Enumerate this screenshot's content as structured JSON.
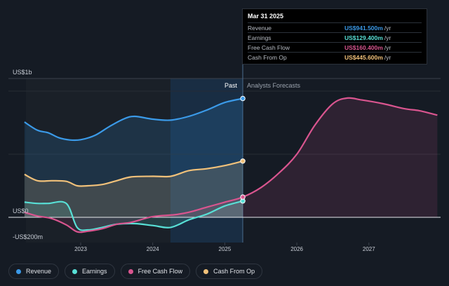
{
  "chart_data": {
    "type": "area",
    "y_unit_labels": {
      "top": "US$1b",
      "zero": "US$0",
      "bottom": "-US$200m"
    },
    "ylim": [
      -200,
      1000
    ],
    "xlim": [
      2022.2,
      2027.98
    ],
    "x_ticks": [
      {
        "value": 2023,
        "label": "2023"
      },
      {
        "value": 2024,
        "label": "2024"
      },
      {
        "value": 2025,
        "label": "2025"
      },
      {
        "value": 2026,
        "label": "2026"
      },
      {
        "value": 2027,
        "label": "2027"
      }
    ],
    "regions": {
      "past_label": "Past",
      "forecast_label": "Analysts Forecasts",
      "divider_x": 2025.25
    },
    "series": [
      {
        "key": "revenue",
        "name": "Revenue",
        "color": "#3b9ae8",
        "points": [
          [
            2022.22,
            755
          ],
          [
            2022.4,
            690
          ],
          [
            2022.55,
            670
          ],
          [
            2022.7,
            630
          ],
          [
            2022.85,
            613
          ],
          [
            2023.0,
            615
          ],
          [
            2023.2,
            650
          ],
          [
            2023.4,
            720
          ],
          [
            2023.6,
            780
          ],
          [
            2023.75,
            800
          ],
          [
            2024.0,
            778
          ],
          [
            2024.25,
            770
          ],
          [
            2024.5,
            800
          ],
          [
            2024.75,
            850
          ],
          [
            2025.0,
            910
          ],
          [
            2025.25,
            941.5
          ]
        ]
      },
      {
        "key": "earnings",
        "name": "Earnings",
        "color": "#58e0d6",
        "points": [
          [
            2022.22,
            120
          ],
          [
            2022.4,
            110
          ],
          [
            2022.55,
            110
          ],
          [
            2022.8,
            110
          ],
          [
            2022.95,
            -80
          ],
          [
            2023.1,
            -100
          ],
          [
            2023.3,
            -80
          ],
          [
            2023.5,
            -55
          ],
          [
            2023.75,
            -50
          ],
          [
            2024.0,
            -65
          ],
          [
            2024.25,
            -80
          ],
          [
            2024.5,
            -20
          ],
          [
            2024.75,
            25
          ],
          [
            2025.0,
            90
          ],
          [
            2025.25,
            129.4
          ]
        ]
      },
      {
        "key": "fcf",
        "name": "Free Cash Flow",
        "color": "#d9558f",
        "points": [
          [
            2022.22,
            40
          ],
          [
            2022.4,
            10
          ],
          [
            2022.6,
            -10
          ],
          [
            2022.8,
            -60
          ],
          [
            2022.95,
            -115
          ],
          [
            2023.1,
            -110
          ],
          [
            2023.3,
            -90
          ],
          [
            2023.5,
            -55
          ],
          [
            2023.7,
            -40
          ],
          [
            2024.0,
            5
          ],
          [
            2024.3,
            20
          ],
          [
            2024.5,
            40
          ],
          [
            2024.75,
            80
          ],
          [
            2025.0,
            120
          ],
          [
            2025.25,
            160.4
          ],
          [
            2025.5,
            235
          ],
          [
            2025.75,
            350
          ],
          [
            2026.0,
            500
          ],
          [
            2026.25,
            730
          ],
          [
            2026.5,
            900
          ],
          [
            2026.7,
            945
          ],
          [
            2026.9,
            930
          ],
          [
            2027.2,
            900
          ],
          [
            2027.5,
            860
          ],
          [
            2027.7,
            845
          ],
          [
            2027.95,
            810
          ]
        ]
      },
      {
        "key": "cfo",
        "name": "Cash From Op",
        "color": "#f1c17a",
        "points": [
          [
            2022.22,
            340
          ],
          [
            2022.4,
            290
          ],
          [
            2022.6,
            290
          ],
          [
            2022.8,
            285
          ],
          [
            2022.95,
            250
          ],
          [
            2023.1,
            250
          ],
          [
            2023.3,
            260
          ],
          [
            2023.5,
            290
          ],
          [
            2023.7,
            320
          ],
          [
            2024.0,
            325
          ],
          [
            2024.25,
            325
          ],
          [
            2024.5,
            370
          ],
          [
            2024.75,
            385
          ],
          [
            2025.0,
            410
          ],
          [
            2025.25,
            445.6
          ]
        ]
      }
    ]
  },
  "tooltip": {
    "date": "Mar 31 2025",
    "rows": [
      {
        "label": "Revenue",
        "value": "US$941.500m",
        "unit": "/yr",
        "color": "#3b9ae8"
      },
      {
        "label": "Earnings",
        "value": "US$129.400m",
        "unit": "/yr",
        "color": "#58e0d6"
      },
      {
        "label": "Free Cash Flow",
        "value": "US$160.400m",
        "unit": "/yr",
        "color": "#d9558f"
      },
      {
        "label": "Cash From Op",
        "value": "US$445.600m",
        "unit": "/yr",
        "color": "#f1c17a"
      }
    ]
  },
  "legend": [
    {
      "label": "Revenue",
      "color": "#3b9ae8"
    },
    {
      "label": "Earnings",
      "color": "#58e0d6"
    },
    {
      "label": "Free Cash Flow",
      "color": "#d9558f"
    },
    {
      "label": "Cash From Op",
      "color": "#f1c17a"
    }
  ]
}
